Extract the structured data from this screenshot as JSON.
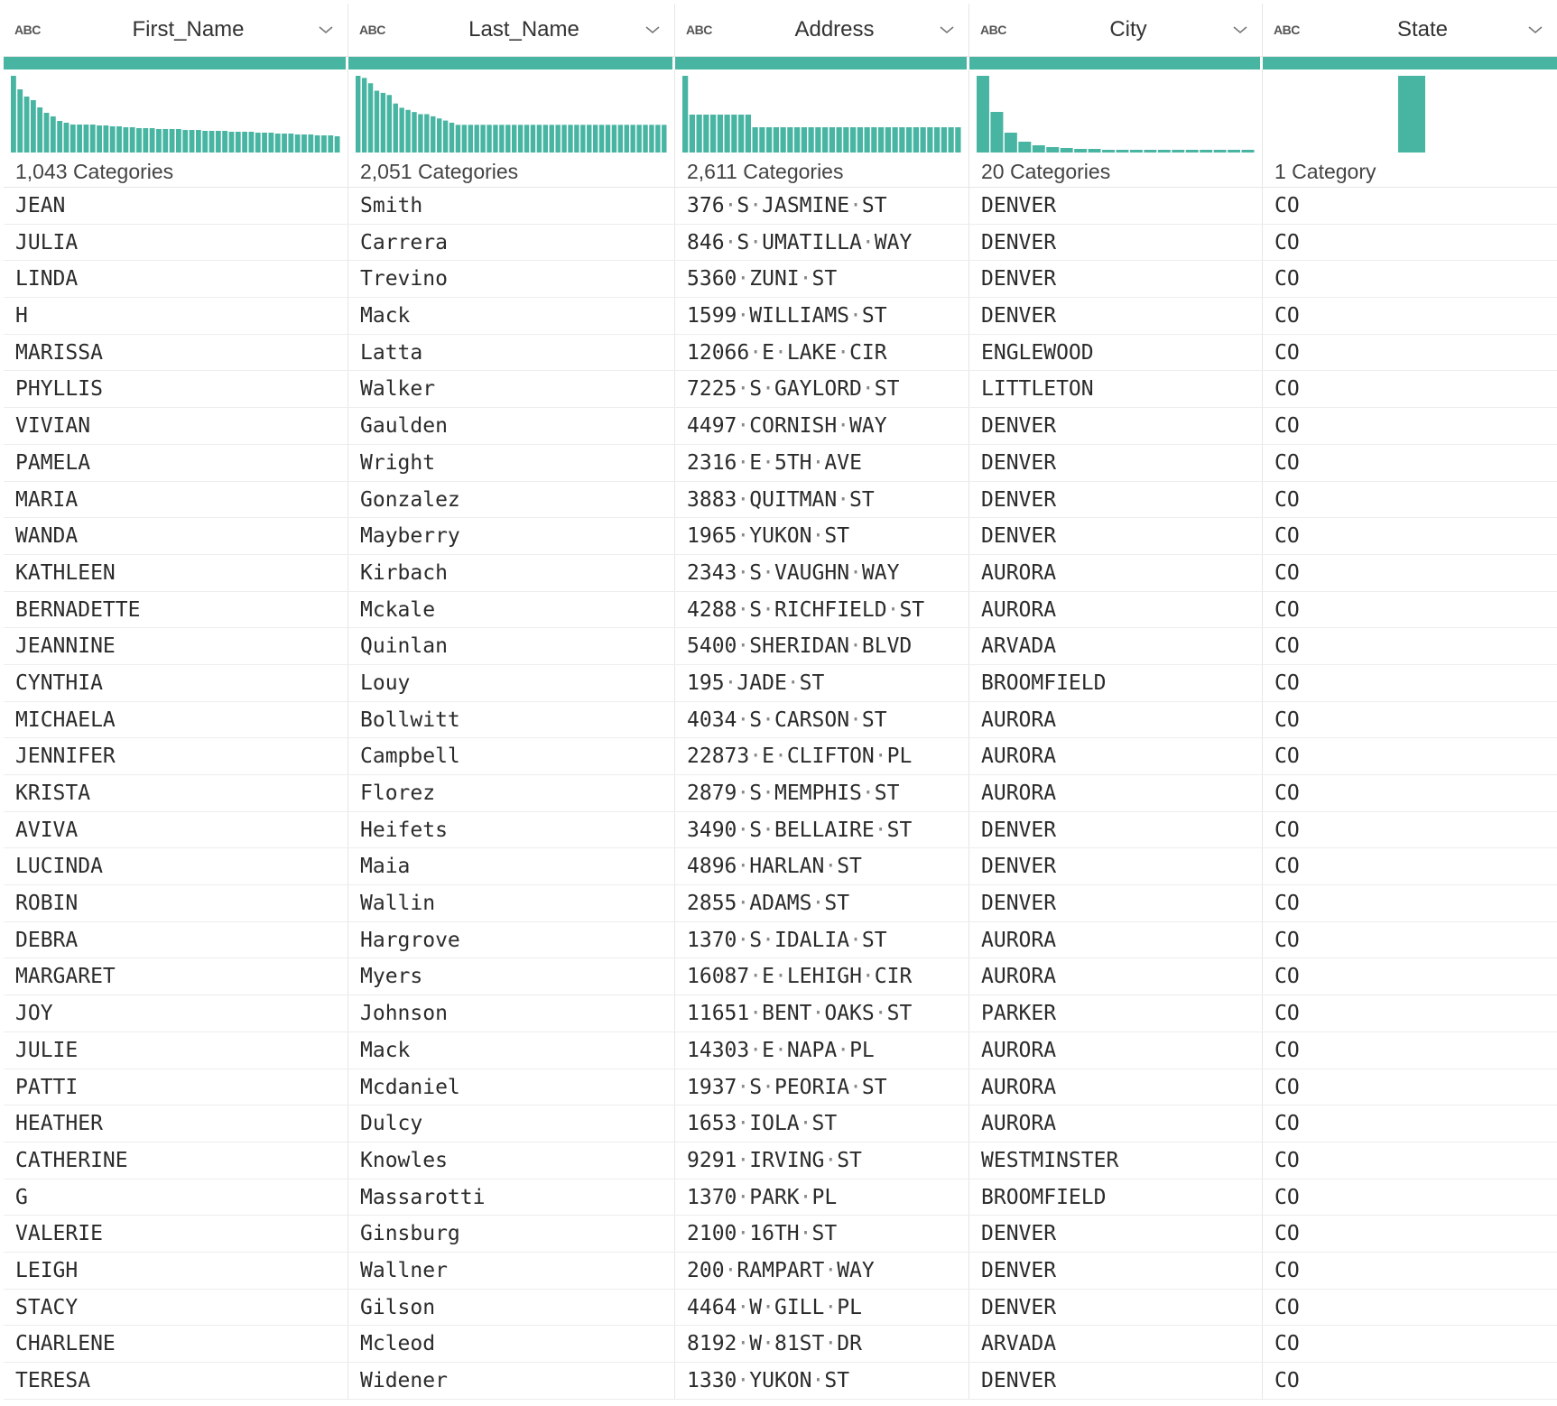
{
  "columns": [
    {
      "type_badge": "ABC",
      "title": "First_Name",
      "categories_label": "1,043 Categories",
      "accent": "#48b5a3",
      "histogram": [
        85,
        70,
        62,
        58,
        50,
        44,
        40,
        35,
        33,
        31,
        31,
        31,
        31,
        30,
        30,
        29,
        29,
        28,
        28,
        27,
        27,
        27,
        26,
        26,
        26,
        26,
        25,
        25,
        25,
        24,
        24,
        24,
        24,
        23,
        23,
        23,
        23,
        22,
        22,
        22,
        21,
        21,
        21,
        20,
        20,
        20,
        19,
        19,
        19,
        18
      ]
    },
    {
      "type_badge": "ABC",
      "title": "Last_Name",
      "categories_label": "2,051 Categories",
      "accent": "#48b5a3",
      "histogram": [
        72,
        70,
        65,
        58,
        56,
        54,
        46,
        42,
        40,
        38,
        36,
        36,
        34,
        32,
        30,
        28,
        26,
        26,
        26,
        26,
        26,
        26,
        26,
        26,
        26,
        26,
        26,
        26,
        26,
        26,
        26,
        26,
        26,
        26,
        26,
        26,
        26,
        26,
        26,
        26,
        26,
        26,
        26,
        26,
        26,
        26,
        26,
        26,
        26,
        26
      ]
    },
    {
      "type_badge": "ABC",
      "title": "Address",
      "categories_label": "2,611 Categories",
      "accent": "#48b5a3",
      "histogram": [
        85,
        42,
        42,
        42,
        42,
        42,
        42,
        42,
        42,
        42,
        28,
        28,
        28,
        28,
        28,
        28,
        28,
        28,
        28,
        28,
        28,
        28,
        28,
        28,
        28,
        28,
        28,
        28,
        28,
        28,
        28,
        28,
        28,
        28,
        28,
        28,
        28,
        28,
        28,
        28
      ]
    },
    {
      "type_badge": "ABC",
      "title": "City",
      "categories_label": "20 Categories",
      "accent": "#48b5a3",
      "histogram": [
        85,
        45,
        22,
        12,
        8,
        6,
        5,
        4,
        4,
        3,
        3,
        3,
        3,
        3,
        3,
        3,
        3,
        3,
        3,
        3
      ]
    },
    {
      "type_badge": "ABC",
      "title": "State",
      "categories_label": "1 Category",
      "accent": "#48b5a3",
      "histogram": [
        85
      ]
    }
  ],
  "rows": [
    [
      "JEAN",
      "Smith",
      "376 S JASMINE ST",
      "DENVER",
      "CO"
    ],
    [
      "JULIA",
      "Carrera",
      "846 S UMATILLA WAY",
      "DENVER",
      "CO"
    ],
    [
      "LINDA",
      "Trevino",
      "5360 ZUNI ST",
      "DENVER",
      "CO"
    ],
    [
      "H",
      "Mack",
      "1599 WILLIAMS ST",
      "DENVER",
      "CO"
    ],
    [
      "MARISSA",
      "Latta",
      "12066 E LAKE CIR",
      "ENGLEWOOD",
      "CO"
    ],
    [
      "PHYLLIS",
      "Walker",
      "7225 S GAYLORD ST",
      "LITTLETON",
      "CO"
    ],
    [
      "VIVIAN",
      "Gaulden",
      "4497 CORNISH WAY",
      "DENVER",
      "CO"
    ],
    [
      "PAMELA",
      "Wright",
      "2316 E 5TH AVE",
      "DENVER",
      "CO"
    ],
    [
      "MARIA",
      "Gonzalez",
      "3883 QUITMAN ST",
      "DENVER",
      "CO"
    ],
    [
      "WANDA",
      "Mayberry",
      "1965 YUKON ST",
      "DENVER",
      "CO"
    ],
    [
      "KATHLEEN",
      "Kirbach",
      "2343 S VAUGHN WAY",
      "AURORA",
      "CO"
    ],
    [
      "BERNADETTE",
      "Mckale",
      "4288 S RICHFIELD ST",
      "AURORA",
      "CO"
    ],
    [
      "JEANNINE",
      "Quinlan",
      "5400 SHERIDAN BLVD",
      "ARVADA",
      "CO"
    ],
    [
      "CYNTHIA",
      "Louy",
      "195 JADE ST",
      "BROOMFIELD",
      "CO"
    ],
    [
      "MICHAELA",
      "Bollwitt",
      "4034 S CARSON ST",
      "AURORA",
      "CO"
    ],
    [
      "JENNIFER",
      "Campbell",
      "22873 E CLIFTON PL",
      "AURORA",
      "CO"
    ],
    [
      "KRISTA",
      "Florez",
      "2879 S MEMPHIS ST",
      "AURORA",
      "CO"
    ],
    [
      "AVIVA",
      "Heifets",
      "3490 S BELLAIRE ST",
      "DENVER",
      "CO"
    ],
    [
      "LUCINDA",
      "Maia",
      "4896 HARLAN ST",
      "DENVER",
      "CO"
    ],
    [
      "ROBIN",
      "Wallin",
      "2855 ADAMS ST",
      "DENVER",
      "CO"
    ],
    [
      "DEBRA",
      "Hargrove",
      "1370 S IDALIA ST",
      "AURORA",
      "CO"
    ],
    [
      "MARGARET",
      "Myers",
      "16087 E LEHIGH CIR",
      "AURORA",
      "CO"
    ],
    [
      "JOY",
      "Johnson",
      "11651 BENT OAKS ST",
      "PARKER",
      "CO"
    ],
    [
      "JULIE",
      "Mack",
      "14303 E NAPA PL",
      "AURORA",
      "CO"
    ],
    [
      "PATTI",
      "Mcdaniel",
      "1937 S PEORIA ST",
      "AURORA",
      "CO"
    ],
    [
      "HEATHER",
      "Dulcy",
      "1653 IOLA ST",
      "AURORA",
      "CO"
    ],
    [
      "CATHERINE",
      "Knowles",
      "9291 IRVING ST",
      "WESTMINSTER",
      "CO"
    ],
    [
      "G",
      "Massarotti",
      "1370 PARK PL",
      "BROOMFIELD",
      "CO"
    ],
    [
      "VALERIE",
      "Ginsburg",
      "2100 16TH ST",
      "DENVER",
      "CO"
    ],
    [
      "LEIGH",
      "Wallner",
      "200 RAMPART WAY",
      "DENVER",
      "CO"
    ],
    [
      "STACY",
      "Gilson",
      "4464 W GILL PL",
      "DENVER",
      "CO"
    ],
    [
      "CHARLENE",
      "Mcleod",
      "8192 W 81ST DR",
      "ARVADA",
      "CO"
    ],
    [
      "TERESA",
      "Widener",
      "1330 YUKON ST",
      "DENVER",
      "CO"
    ]
  ]
}
